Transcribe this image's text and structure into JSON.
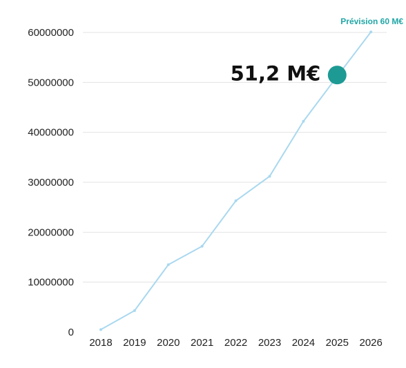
{
  "chart_data": {
    "type": "line",
    "title": "",
    "xlabel": "",
    "ylabel": "",
    "categories": [
      "2018",
      "2019",
      "2020",
      "2021",
      "2022",
      "2023",
      "2024",
      "2025",
      "2026"
    ],
    "values": [
      500000,
      4300000,
      13500000,
      17200000,
      26300000,
      31200000,
      42200000,
      51200000,
      60100000
    ],
    "ylim": [
      0,
      60000000
    ],
    "yticks": [
      "0",
      "10000000",
      "20000000",
      "30000000",
      "40000000",
      "50000000",
      "60000000"
    ],
    "grid": true,
    "line_color": "#a9d8ef",
    "highlight_color": "#1e9a94",
    "highlight": {
      "category": "2025",
      "value": 51200000,
      "label": "51,2 M€"
    },
    "forecast": {
      "category": "2026",
      "value": 60100000,
      "label": "Prévision 60 M€"
    }
  }
}
